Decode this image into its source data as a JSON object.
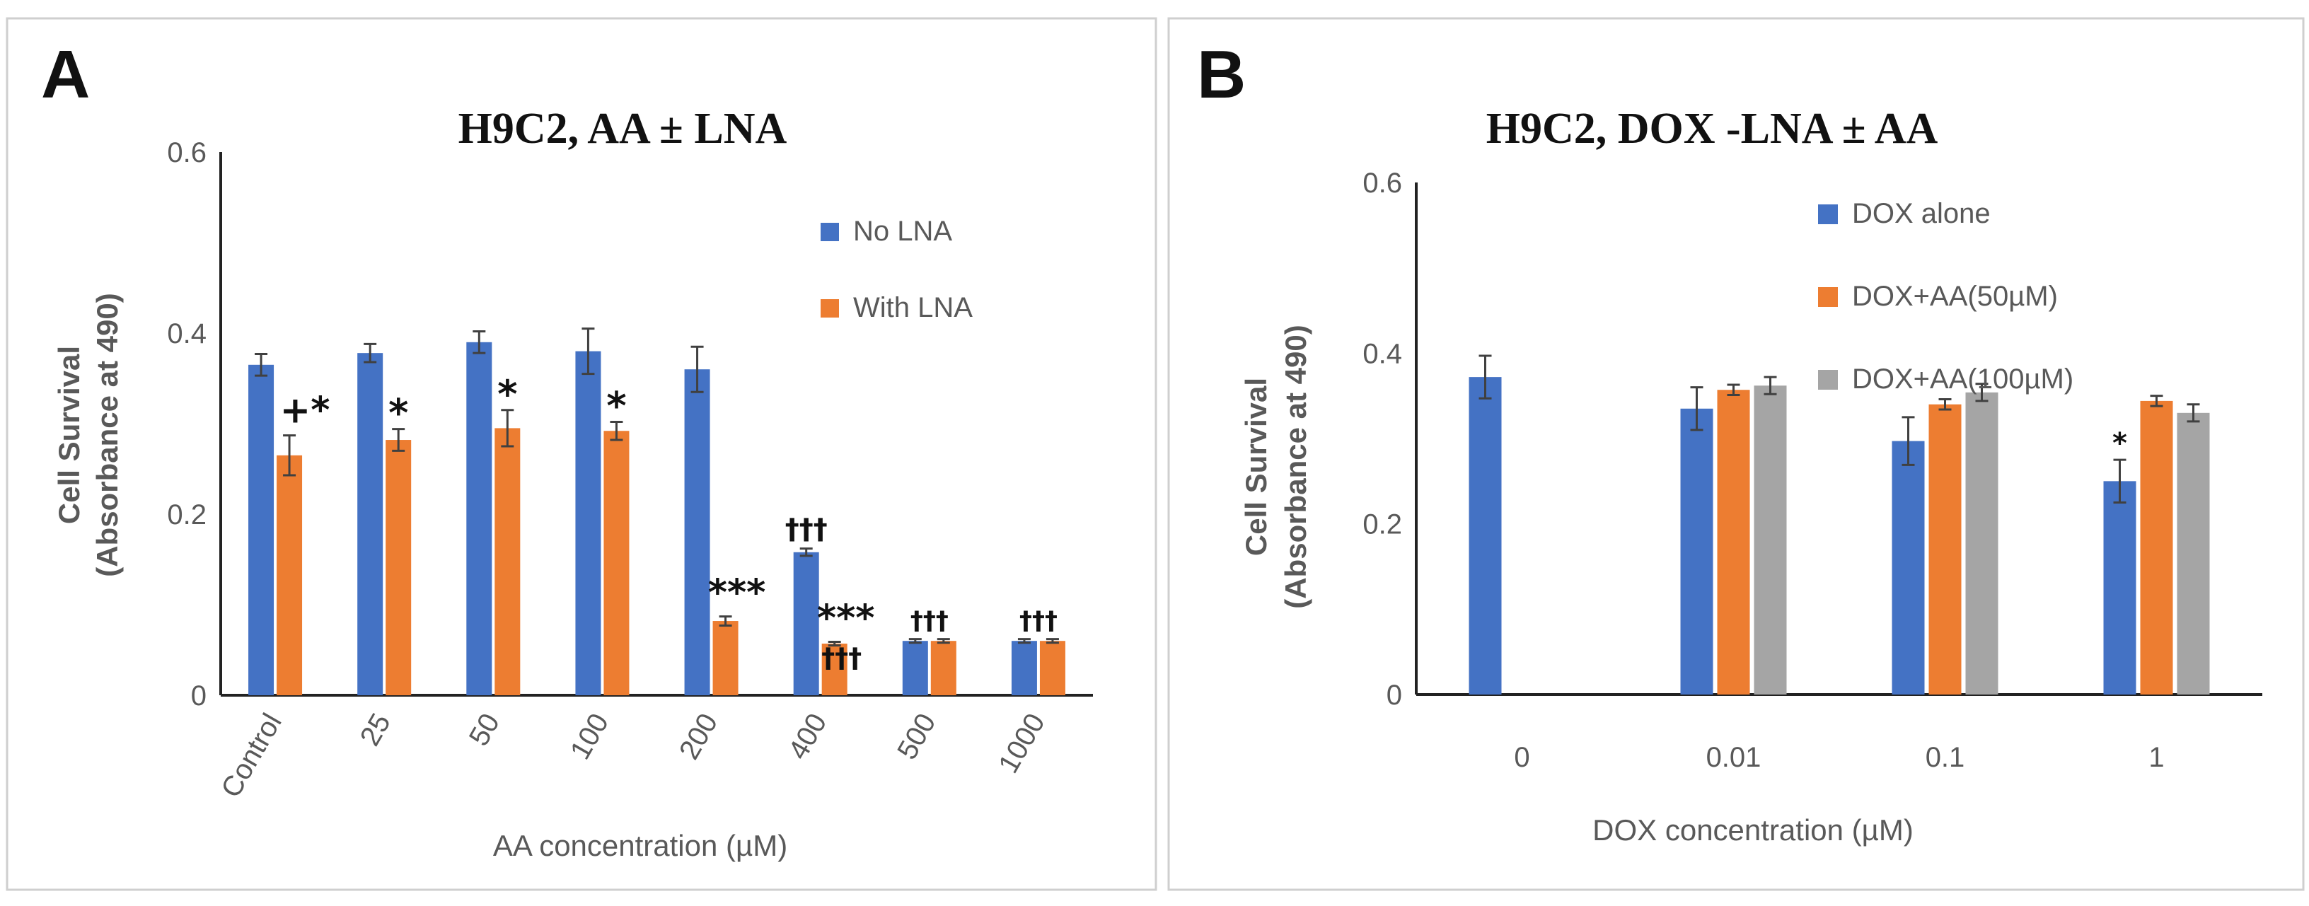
{
  "chart_data": [
    {
      "panel": "A",
      "type": "bar",
      "title": "H9C2, AA ± LNA",
      "xlabel": "AA concentration (µM)",
      "ylabel_line1": "Cell Survival",
      "ylabel_line2": "(Absorbance at 490)",
      "ylim": [
        0,
        0.6
      ],
      "yticks": [
        "0",
        "0.2",
        "0.4",
        "0.6"
      ],
      "categories": [
        "Control",
        "25",
        "50",
        "100",
        "200",
        "400",
        "500",
        "1000"
      ],
      "legend_position": "top-right",
      "series": [
        {
          "name": "No LNA",
          "color": "#4472C4",
          "values": [
            0.365,
            0.378,
            0.39,
            0.38,
            0.36,
            0.158,
            0.06,
            0.06
          ],
          "errors": [
            0.012,
            0.01,
            0.012,
            0.025,
            0.025,
            0.004,
            0.002,
            0.002
          ]
        },
        {
          "name": "With LNA",
          "color": "#ED7D31",
          "values": [
            0.265,
            0.282,
            0.295,
            0.292,
            0.082,
            0.057,
            0.06,
            0.06
          ],
          "errors": [
            0.022,
            0.012,
            0.02,
            0.01,
            0.005,
            0.002,
            0.002,
            0.002
          ]
        }
      ],
      "annotations": [
        {
          "category": 0,
          "series": 1,
          "text": "+*"
        },
        {
          "category": 1,
          "series": 1,
          "text": "*"
        },
        {
          "category": 2,
          "series": 1,
          "text": "*"
        },
        {
          "category": 3,
          "series": 1,
          "text": "*"
        },
        {
          "category": 4,
          "series": 1,
          "text": "***"
        },
        {
          "category": 5,
          "series": 0,
          "text": "†††"
        },
        {
          "category": 5,
          "series": 1,
          "text": "***"
        },
        {
          "category": 5,
          "series": 1,
          "text": "†††",
          "row": 2
        },
        {
          "category": 6,
          "series": 0,
          "text": "†††",
          "span": true
        },
        {
          "category": 7,
          "series": 0,
          "text": "†††",
          "span": true
        }
      ]
    },
    {
      "panel": "B",
      "type": "bar",
      "title": "H9C2, DOX -LNA ± AA",
      "xlabel": "DOX concentration (µM)",
      "ylabel_line1": "Cell Survival",
      "ylabel_line2": "(Absorbance at 490)",
      "ylim": [
        0,
        0.6
      ],
      "yticks": [
        "0",
        "0.2",
        "0.4",
        "0.6"
      ],
      "categories": [
        "0",
        "0.01",
        "0.1",
        "1"
      ],
      "legend_position": "top-right",
      "series": [
        {
          "name": "DOX alone",
          "color": "#4472C4",
          "values": [
            0.372,
            0.335,
            0.297,
            0.25
          ],
          "errors": [
            0.025,
            0.025,
            0.028,
            0.025
          ]
        },
        {
          "name": "DOX+AA(50µM)",
          "color": "#ED7D31",
          "values": [
            null,
            0.357,
            0.34,
            0.344
          ],
          "errors": [
            null,
            0.006,
            0.006,
            0.006
          ]
        },
        {
          "name": "DOX+AA(100µM)",
          "color": "#A5A5A5",
          "values": [
            null,
            0.362,
            0.354,
            0.33
          ],
          "errors": [
            null,
            0.01,
            0.01,
            0.01
          ]
        }
      ],
      "annotations": [
        {
          "category": 3,
          "series": 0,
          "text": "*"
        }
      ]
    }
  ]
}
